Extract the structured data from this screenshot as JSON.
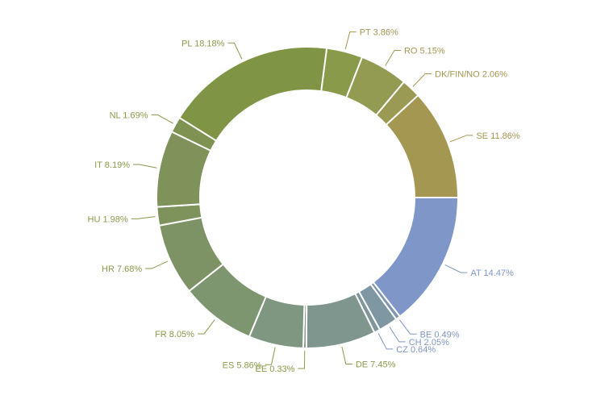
{
  "chart_data": {
    "type": "pie",
    "variant": "donut",
    "title": "",
    "labels": [
      "AT",
      "BE",
      "CH",
      "CZ",
      "DE",
      "EE",
      "ES",
      "FR",
      "HR",
      "HU",
      "IT",
      "NL",
      "PL",
      "PT",
      "RO",
      "DK/FIN/NO",
      "SE"
    ],
    "values": [
      14.47,
      0.49,
      2.05,
      0.64,
      7.45,
      0.33,
      5.86,
      8.05,
      7.68,
      1.98,
      8.19,
      1.69,
      18.18,
      3.86,
      5.15,
      2.06,
      11.86
    ],
    "display_labels": [
      "AT 14.47%",
      "BE 0.49%",
      "CH 2.05%",
      "CZ 0.64%",
      "DE 7.45%",
      "EE 0.33%",
      "ES 5.86%",
      "FR 8.05%",
      "HR 7.68%",
      "HU 1.98%",
      "IT 8.19%",
      "NL 1.69%",
      "PL 18.18%",
      "PT 3.86%",
      "RO 5.15%",
      "DK/FIN/NO 2.06%",
      "SE 11.86%"
    ],
    "colors": [
      "#7e97c8",
      "#7f96ae",
      "#7f96a3",
      "#7f969b",
      "#7f968e",
      "#7f9682",
      "#7f9680",
      "#7e9670",
      "#7e9365",
      "#7e935c",
      "#7e925a",
      "#7e9252",
      "#7f9445",
      "#8a9a4b",
      "#939b52",
      "#9b9a54",
      "#a49752"
    ],
    "label_colors": [
      "#7e97c8",
      "#7e97c8",
      "#7e97c8",
      "#7e97c8",
      "#8a9a4b",
      "#8a9a4b",
      "#8a9a4b",
      "#8a9a4b",
      "#8a9a4b",
      "#8a9a4b",
      "#8a9a4b",
      "#8a9a4b",
      "#8a9a4b",
      "#a49752",
      "#a49752",
      "#a49752",
      "#a49752"
    ],
    "start_direction": "east, clockwise",
    "legend": "none (direct labels)"
  }
}
